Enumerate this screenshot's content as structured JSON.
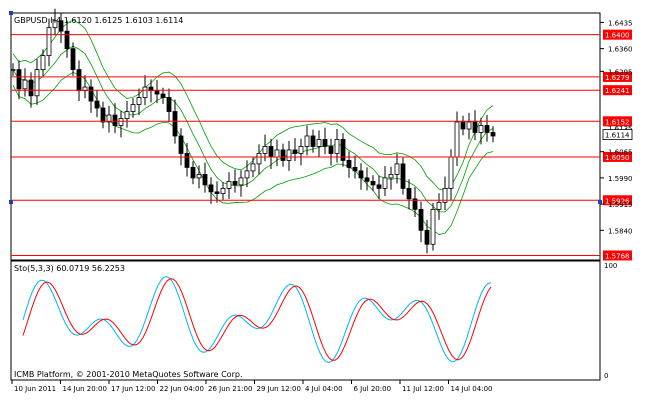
{
  "main_chart": {
    "title_text": "GBPUSD,H4  1.6120 1.6125 1.6103 1.6114",
    "price_min": 1.5755,
    "price_max": 1.6462,
    "price_ticks": [
      "1.6435",
      "1.6360",
      "1.6295",
      "1.6065",
      "1.5990",
      "1.5915",
      "1.5840"
    ],
    "price_tick_values": [
      1.6435,
      1.636,
      1.6295,
      1.6065,
      1.599,
      1.5915,
      1.584
    ],
    "resistance_lines": [
      {
        "label": "1.6400",
        "value": 1.64
      },
      {
        "label": "1.6279",
        "value": 1.6279
      },
      {
        "label": "1.6241",
        "value": 1.6241
      },
      {
        "label": "1.6152",
        "value": 1.6152
      },
      {
        "label": "1.6050",
        "value": 1.605
      },
      {
        "label": "1.5926",
        "value": 1.5926
      },
      {
        "label": "1.5768",
        "value": 1.5768
      }
    ],
    "partial_tick_label": "1.6135",
    "current_price": {
      "label": "1.6114",
      "value": 1.6114
    },
    "line_color": "#ff0000",
    "candle_color": "#000000",
    "band_color": "#00a000"
  },
  "stochastic": {
    "label": "Sto(5,3,3) 60.0719 56.2253",
    "top_tick": "100",
    "bottom_tick": "0",
    "k_color": "#00b4ff",
    "d_color": "#ff0000"
  },
  "watermark": "ICMB Platform, © 2001-2010 MetaQuotes Software Corp.",
  "time_axis": [
    "10 Jun 2011",
    "14 Jun 20:00",
    "17 Jun 12:00",
    "22 Jun 04:00",
    "26 Jun 21:00",
    "29 Jun 12:00",
    "4 Jul 04:00",
    "6 Jul 20:00",
    "11 Jul 12:00",
    "14 Jul 04:00"
  ]
}
